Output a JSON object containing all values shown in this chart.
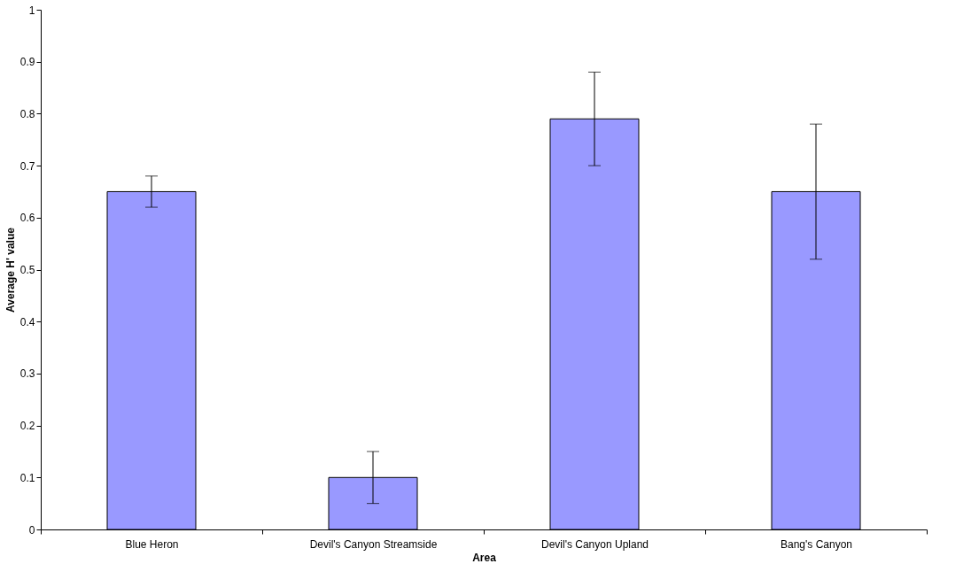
{
  "chart_data": {
    "type": "bar",
    "xlabel": "Area",
    "ylabel": "Average H' value",
    "categories": [
      "Blue Heron",
      "Devil's Canyon Streamside",
      "Devil's Canyon Upland",
      "Bang's Canyon"
    ],
    "values": [
      0.65,
      0.1,
      0.79,
      0.65
    ],
    "errors": [
      0.03,
      0.05,
      0.09,
      0.13
    ],
    "color": "#9999ff",
    "ylim": [
      0,
      1
    ],
    "yticks": [
      0,
      0.1,
      0.2,
      0.3,
      0.4,
      0.5,
      0.6,
      0.7,
      0.8,
      0.9,
      1
    ],
    "grid": false
  }
}
